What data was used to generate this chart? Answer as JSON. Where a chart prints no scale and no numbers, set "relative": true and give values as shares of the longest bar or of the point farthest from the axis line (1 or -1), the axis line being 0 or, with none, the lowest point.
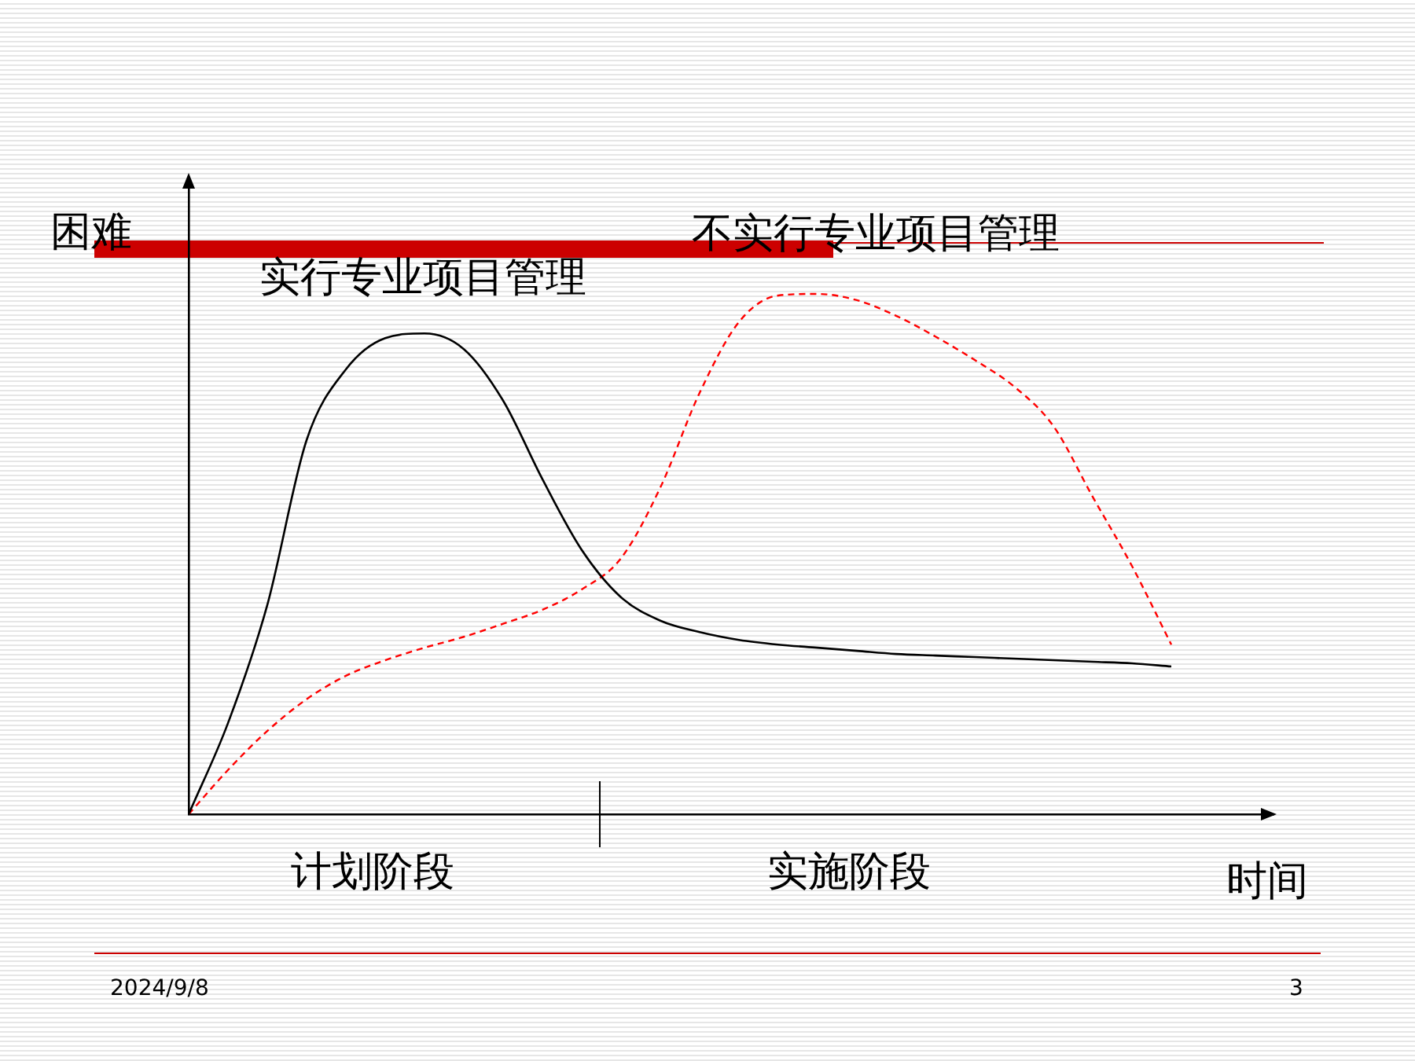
{
  "chart_data": {
    "type": "line",
    "relative": true,
    "ylabel": "困难",
    "xlabel": "时间",
    "legend": false,
    "grid": false,
    "categories": [
      null,
      null,
      null,
      null,
      null,
      null,
      null,
      null,
      null,
      null,
      null,
      null,
      null,
      null,
      null,
      null,
      null,
      null,
      null,
      null,
      null,
      null,
      null,
      null,
      null,
      null
    ],
    "series": [
      {
        "name": "实行专业项目管理",
        "color": "#000000",
        "line_style": "solid",
        "values": [
          0,
          0.175,
          0.402,
          0.719,
          0.855,
          0.915,
          0.924,
          0.894,
          0.795,
          0.644,
          0.508,
          0.417,
          0.372,
          0.35,
          0.335,
          0.326,
          0.32,
          0.314,
          0.308,
          0.305,
          0.302,
          0.299,
          0.296,
          0.293,
          0.29,
          0.284
        ]
      },
      {
        "name": "不实行专业项目管理",
        "color": "#ff0000",
        "line_style": "dashed",
        "values": [
          0,
          0.085,
          0.16,
          0.221,
          0.266,
          0.296,
          0.32,
          0.341,
          0.366,
          0.393,
          0.432,
          0.492,
          0.628,
          0.81,
          0.946,
          0.997,
          1,
          0.988,
          0.958,
          0.918,
          0.873,
          0.822,
          0.746,
          0.61,
          0.477,
          0.326
        ]
      }
    ],
    "annotations": [
      "计划阶段",
      "实施阶段",
      "2024/9/8",
      "3"
    ]
  }
}
